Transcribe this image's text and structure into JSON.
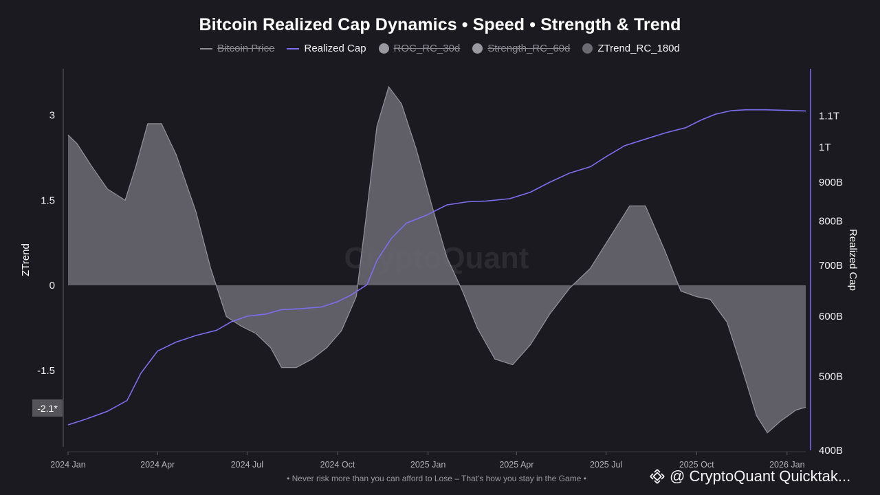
{
  "chart_data": {
    "type": "line",
    "title": "Bitcoin Realized Cap Dynamics • Speed • Strength & Trend",
    "legend": [
      {
        "name": "Bitcoin Price",
        "marker": "line",
        "color": "#8e8d96",
        "visible": false
      },
      {
        "name": "Realized Cap",
        "marker": "line",
        "color": "#7b6ff0",
        "visible": true
      },
      {
        "name": "ROC_RC_30d",
        "marker": "dot",
        "color": "#9a99a1",
        "visible": false
      },
      {
        "name": "Strength_RC_60d",
        "marker": "dot",
        "color": "#9a99a1",
        "visible": false
      },
      {
        "name": "ZTrend_RC_180d",
        "marker": "dot",
        "color": "#6b6a72",
        "visible": true
      }
    ],
    "x_ticks": [
      "2024 Jan",
      "2024 Apr",
      "2024 Jul",
      "2024 Oct",
      "2025 Jan",
      "2025 Apr",
      "2025 Jul",
      "2025 Oct",
      "2026 Jan"
    ],
    "x_range": [
      "2024-01-01",
      "2026-01-20"
    ],
    "left_axis": {
      "label": "ZTrend",
      "ticks": [
        "3",
        "1.5",
        "0",
        "-1.5"
      ],
      "ylim": [
        -2.9,
        3.9
      ]
    },
    "right_axis": {
      "label": "Realized Cap",
      "ticks": [
        "1.1T",
        "1T",
        "900B",
        "800B",
        "700B",
        "600B",
        "500B",
        "400B"
      ],
      "scale": "log",
      "ylim": [
        400,
        1200
      ],
      "unit": "B USD"
    },
    "current_readout": "-2.1*",
    "series": [
      {
        "name": "ZTrend_RC_180d",
        "axis": "left",
        "type": "area",
        "color": "#8a8991",
        "points": [
          [
            "2024-01-01",
            2.65
          ],
          [
            "2024-01-10",
            2.5
          ],
          [
            "2024-01-25",
            2.1
          ],
          [
            "2024-02-10",
            1.7
          ],
          [
            "2024-02-28",
            1.5
          ],
          [
            "2024-03-10",
            2.1
          ],
          [
            "2024-03-22",
            2.85
          ],
          [
            "2024-04-05",
            2.85
          ],
          [
            "2024-04-20",
            2.3
          ],
          [
            "2024-05-10",
            1.3
          ],
          [
            "2024-05-25",
            0.3
          ],
          [
            "2024-06-10",
            -0.55
          ],
          [
            "2024-06-25",
            -0.72
          ],
          [
            "2024-07-10",
            -0.85
          ],
          [
            "2024-07-25",
            -1.1
          ],
          [
            "2024-08-05",
            -1.45
          ],
          [
            "2024-08-20",
            -1.45
          ],
          [
            "2024-09-05",
            -1.3
          ],
          [
            "2024-09-20",
            -1.1
          ],
          [
            "2024-10-05",
            -0.8
          ],
          [
            "2024-10-20",
            -0.2
          ],
          [
            "2024-10-30",
            1.2
          ],
          [
            "2024-11-10",
            2.8
          ],
          [
            "2024-11-22",
            3.5
          ],
          [
            "2024-12-05",
            3.2
          ],
          [
            "2024-12-20",
            2.4
          ],
          [
            "2025-01-05",
            1.4
          ],
          [
            "2025-01-20",
            0.5
          ],
          [
            "2025-02-05",
            -0.1
          ],
          [
            "2025-02-20",
            -0.75
          ],
          [
            "2025-03-10",
            -1.3
          ],
          [
            "2025-03-28",
            -1.4
          ],
          [
            "2025-04-15",
            -1.05
          ],
          [
            "2025-05-05",
            -0.5
          ],
          [
            "2025-05-25",
            -0.05
          ],
          [
            "2025-06-15",
            0.3
          ],
          [
            "2025-07-05",
            0.85
          ],
          [
            "2025-07-25",
            1.4
          ],
          [
            "2025-08-10",
            1.4
          ],
          [
            "2025-08-30",
            0.6
          ],
          [
            "2025-09-15",
            -0.1
          ],
          [
            "2025-10-01",
            -0.2
          ],
          [
            "2025-10-15",
            -0.25
          ],
          [
            "2025-11-01",
            -0.65
          ],
          [
            "2025-11-15",
            -1.4
          ],
          [
            "2025-12-01",
            -2.3
          ],
          [
            "2025-12-12",
            -2.6
          ],
          [
            "2025-12-25",
            -2.4
          ],
          [
            "2026-01-10",
            -2.2
          ],
          [
            "2026-01-20",
            -2.15
          ]
        ]
      },
      {
        "name": "Realized Cap",
        "axis": "right",
        "type": "line",
        "color": "#7b6ff0",
        "unit": "B USD",
        "points": [
          [
            "2024-01-01",
            432
          ],
          [
            "2024-01-20",
            440
          ],
          [
            "2024-02-10",
            450
          ],
          [
            "2024-03-01",
            465
          ],
          [
            "2024-03-15",
            505
          ],
          [
            "2024-04-01",
            540
          ],
          [
            "2024-04-20",
            555
          ],
          [
            "2024-05-10",
            566
          ],
          [
            "2024-05-31",
            575
          ],
          [
            "2024-06-15",
            590
          ],
          [
            "2024-07-01",
            600
          ],
          [
            "2024-07-20",
            604
          ],
          [
            "2024-08-05",
            612
          ],
          [
            "2024-08-25",
            614
          ],
          [
            "2024-09-15",
            617
          ],
          [
            "2024-10-01",
            627
          ],
          [
            "2024-10-15",
            640
          ],
          [
            "2024-10-31",
            660
          ],
          [
            "2024-11-10",
            710
          ],
          [
            "2024-11-25",
            760
          ],
          [
            "2024-12-10",
            795
          ],
          [
            "2024-12-31",
            815
          ],
          [
            "2025-01-20",
            840
          ],
          [
            "2025-02-10",
            848
          ],
          [
            "2025-03-01",
            850
          ],
          [
            "2025-03-25",
            856
          ],
          [
            "2025-04-15",
            873
          ],
          [
            "2025-05-05",
            900
          ],
          [
            "2025-05-25",
            925
          ],
          [
            "2025-06-15",
            943
          ],
          [
            "2025-07-01",
            972
          ],
          [
            "2025-07-20",
            1005
          ],
          [
            "2025-08-10",
            1025
          ],
          [
            "2025-08-31",
            1045
          ],
          [
            "2025-09-20",
            1061
          ],
          [
            "2025-10-05",
            1085
          ],
          [
            "2025-10-20",
            1105
          ],
          [
            "2025-11-05",
            1117
          ],
          [
            "2025-11-20",
            1120
          ],
          [
            "2025-12-10",
            1120
          ],
          [
            "2026-01-01",
            1118
          ],
          [
            "2026-01-20",
            1116
          ]
        ]
      }
    ]
  },
  "footer_note": "• Never risk more than you can afford to Lose – That's how you stay in the Game •",
  "watermark": {
    "text": "@ CryptoQuant Quicktak...",
    "icon": "binance-logo-icon"
  },
  "background_watermark": "CryptoQuant",
  "colors": {
    "background": "#1b1a20",
    "realized_cap": "#7b6ff0",
    "ztrend_fill": "#6c6b73",
    "axis": "#5d5c64"
  }
}
